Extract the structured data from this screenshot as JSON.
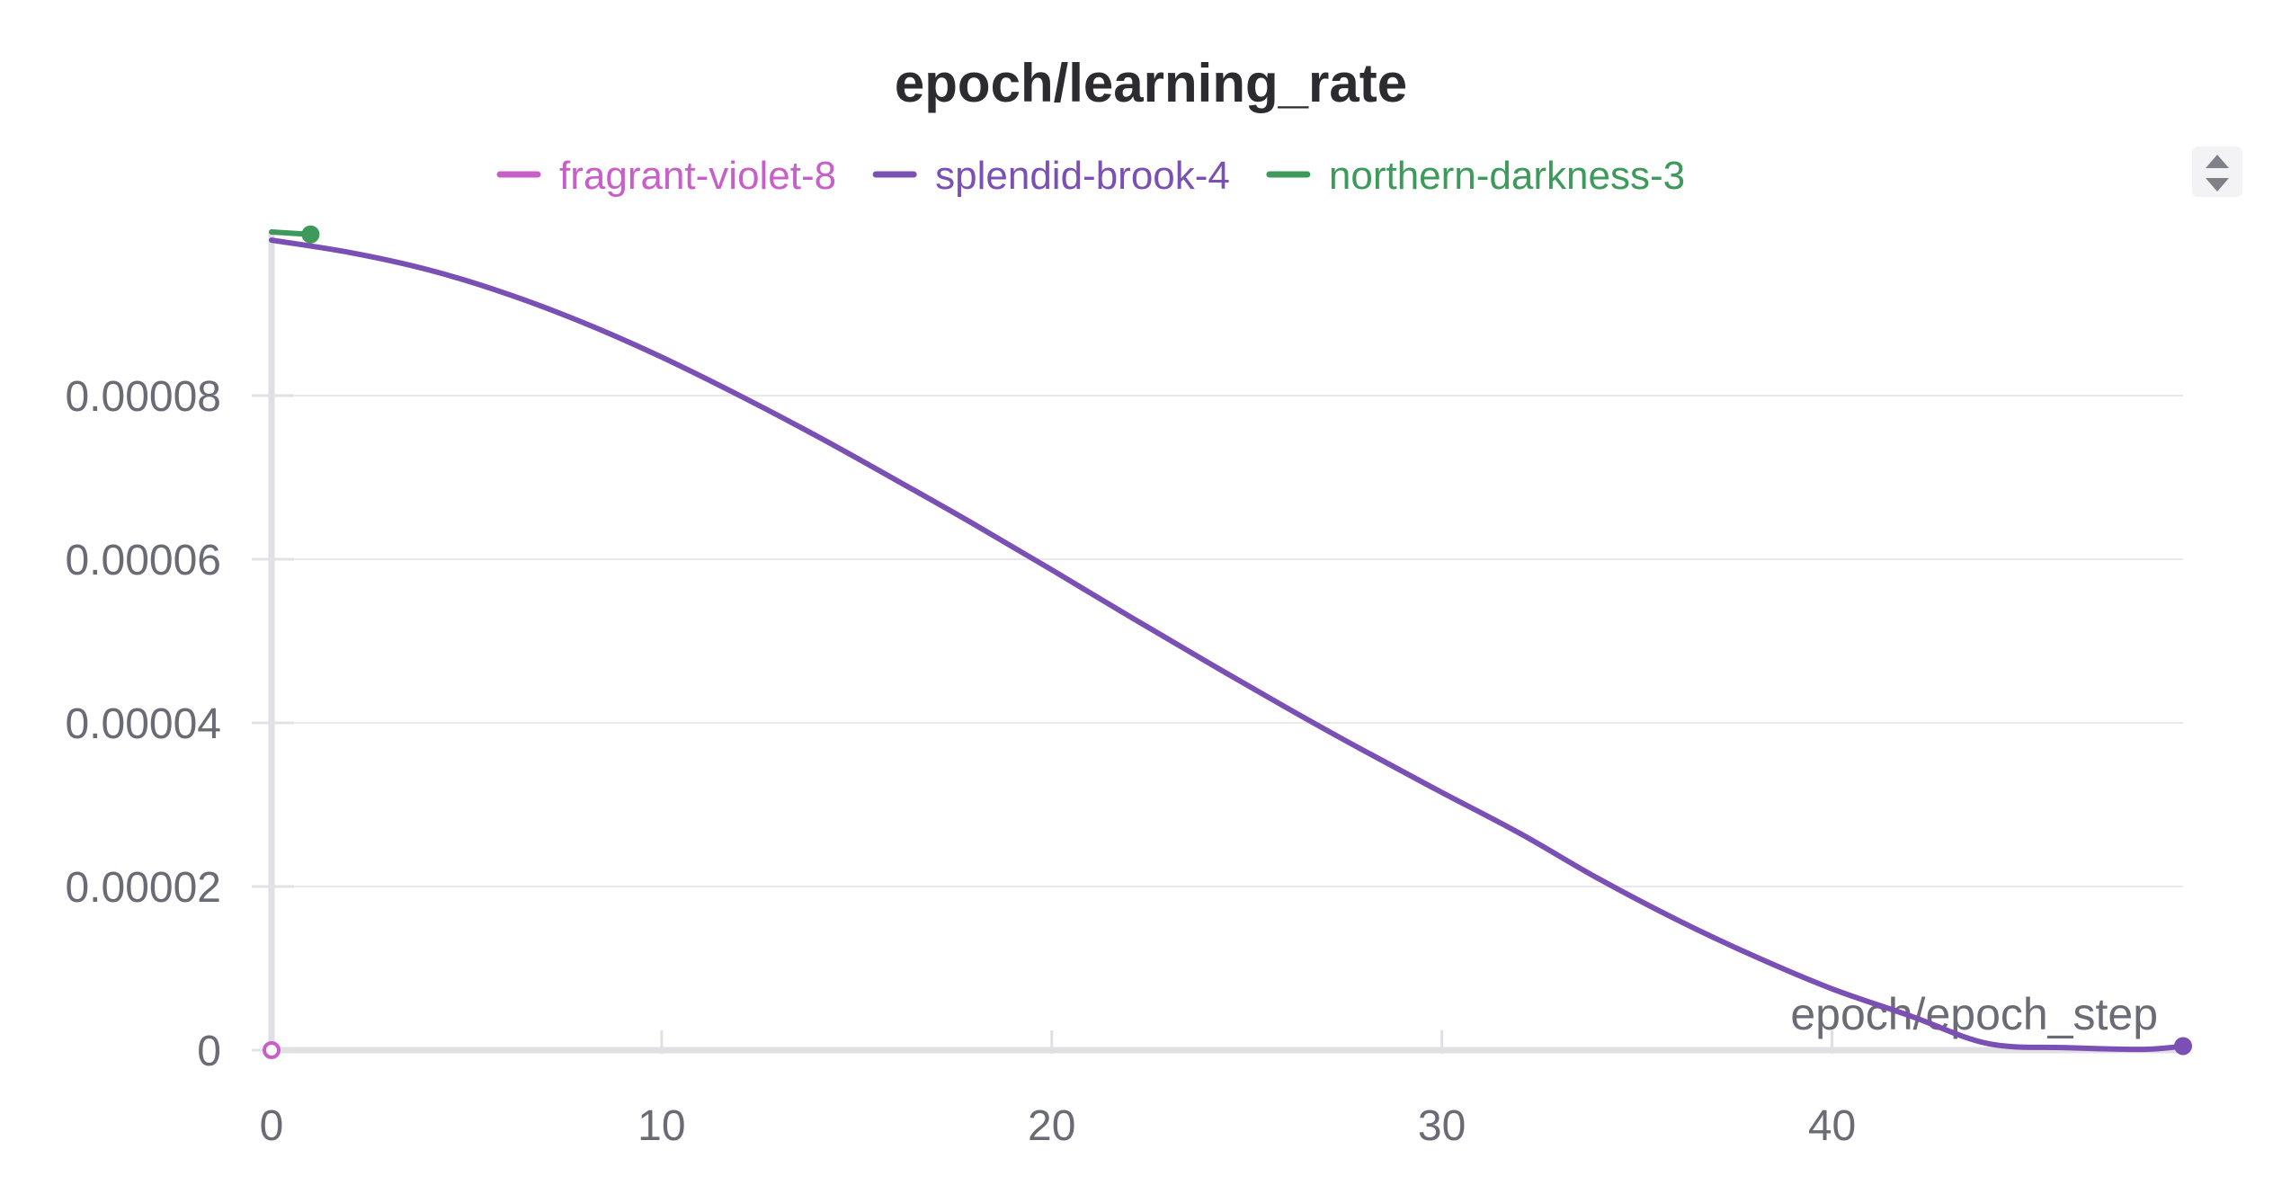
{
  "chart_data": {
    "type": "line",
    "title": "epoch/learning_rate",
    "xlabel": "epoch/epoch_step",
    "ylabel": "",
    "xlim": [
      0,
      49
    ],
    "ylim": [
      0,
      0.0001
    ],
    "xticks": [
      "0",
      "10",
      "20",
      "30",
      "40"
    ],
    "yticks": [
      "0",
      "0.00002",
      "0.00004",
      "0.00006",
      "0.00008"
    ],
    "grid": true,
    "legend_position": "top",
    "series": [
      {
        "name": "fragrant-violet-8",
        "color": "#c85fc9",
        "x": [
          0
        ],
        "y": [
          0
        ]
      },
      {
        "name": "splendid-brook-4",
        "color": "#7b50b5",
        "x": [
          0,
          2,
          4,
          6,
          8,
          10,
          12,
          14,
          16,
          18,
          20,
          22,
          24,
          26,
          28,
          30,
          32,
          34,
          36,
          38,
          40,
          42,
          44,
          46,
          48,
          49
        ],
        "y": [
          9.9e-05,
          9.75e-05,
          9.54e-05,
          9.25e-05,
          8.89e-05,
          8.47e-05,
          8e-05,
          7.5e-05,
          6.97e-05,
          6.43e-05,
          5.87e-05,
          5.3e-05,
          4.74e-05,
          4.19e-05,
          3.66e-05,
          3.15e-05,
          2.65e-05,
          2.1e-05,
          1.6e-05,
          1.15e-05,
          7.5e-06,
          4.2e-06,
          8e-07,
          3e-07,
          1e-07,
          5e-07
        ]
      },
      {
        "name": "northern-darkness-3",
        "color": "#3d9a5a",
        "x": [
          0,
          1
        ],
        "y": [
          0.0001,
          9.97e-05
        ]
      }
    ]
  }
}
